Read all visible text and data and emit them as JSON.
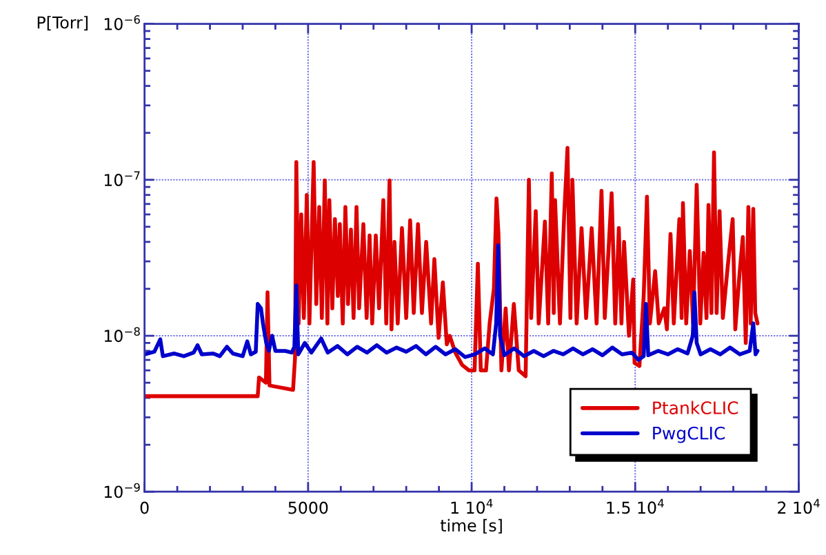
{
  "chart_data": {
    "type": "line",
    "xlabel": "time [s]",
    "ylabel": "P[Torr]",
    "log": "y",
    "grid": true,
    "legend": "bottom right",
    "line_style": "solid",
    "xlim": [
      0,
      20000
    ],
    "xticks": [
      0,
      5000,
      {
        "value": 10000,
        "label": "1 10$^{4}$"
      },
      {
        "value": 15000,
        "label": "1.5 10$^{4}$"
      },
      {
        "value": 20000,
        "label": "2 10$^{4}$"
      }
    ],
    "ylim": [
      1e-09,
      1e-06
    ],
    "yticks": [
      {
        "value": 1e-09,
        "label": "10$^{−9}$"
      },
      {
        "value": 1e-08,
        "label": "10$^{−8}$"
      },
      {
        "value": 1e-07,
        "label": "10$^{−7}$"
      },
      {
        "value": 1e-06,
        "label": "10$^{−6}$"
      }
    ],
    "series": [
      {
        "name": "PtankCLIC",
        "color": "#dd0000",
        "x": [
          0,
          3460,
          3500,
          3710,
          3760,
          3820,
          4540,
          4600,
          4640,
          4710,
          4790,
          4870,
          4960,
          5040,
          5170,
          5250,
          5340,
          5420,
          5510,
          5590,
          5650,
          5740,
          5820,
          5910,
          5970,
          6060,
          6140,
          6220,
          6310,
          6390,
          6480,
          6560,
          6690,
          6790,
          6880,
          6960,
          7070,
          7170,
          7300,
          7390,
          7490,
          7550,
          7640,
          7740,
          7870,
          8000,
          8120,
          8230,
          8360,
          8480,
          8610,
          8760,
          8860,
          8990,
          9120,
          9240,
          9330,
          9500,
          9710,
          9920,
          10090,
          10190,
          10280,
          10440,
          10550,
          10680,
          10760,
          10820,
          10910,
          11040,
          11140,
          11290,
          11440,
          11650,
          11750,
          11820,
          11960,
          12050,
          12240,
          12340,
          12450,
          12510,
          12550,
          12700,
          12830,
          12930,
          13020,
          13080,
          13210,
          13360,
          13500,
          13670,
          13820,
          13970,
          14070,
          14280,
          14390,
          14500,
          14580,
          14660,
          14810,
          14940,
          14980,
          15130,
          15260,
          15360,
          15450,
          15610,
          15720,
          15890,
          15970,
          16080,
          16180,
          16350,
          16420,
          16460,
          16560,
          16670,
          16770,
          16880,
          16990,
          17090,
          17180,
          17240,
          17330,
          17410,
          17490,
          17580,
          17680,
          17830,
          17980,
          18060,
          18190,
          18290,
          18380,
          18460,
          18530,
          18610,
          18670,
          18740
        ],
        "values": [
          4.1e-09,
          4.1e-09,
          5.4e-09,
          5e-09,
          1.9e-08,
          4.8e-09,
          4.5e-09,
          7.2e-09,
          1.3e-07,
          1.2e-08,
          6e-08,
          1.3e-08,
          8e-08,
          1.2e-08,
          1.3e-07,
          1.6e-08,
          6.7e-08,
          1.3e-08,
          9.9e-08,
          1.2e-08,
          7.4e-08,
          1.5e-08,
          5.6e-08,
          1.8e-08,
          5.2e-08,
          1.2e-08,
          6.7e-08,
          1.6e-08,
          4.8e-08,
          1.3e-08,
          6.7e-08,
          1.5e-08,
          5.2e-08,
          1.3e-08,
          4.4e-08,
          1.2e-08,
          4.4e-08,
          1.5e-08,
          7.4e-08,
          1.2e-08,
          9.9e-08,
          1.1e-08,
          4e-08,
          1.2e-08,
          4.9e-08,
          1.3e-08,
          5.5e-08,
          1.4e-08,
          5.2e-08,
          1.4e-08,
          4e-08,
          1.2e-08,
          3.1e-08,
          9.7e-09,
          2.2e-08,
          8.8e-09,
          1e-08,
          7.8e-09,
          6.5e-09,
          6e-09,
          6e-09,
          2.9e-08,
          6e-09,
          6e-09,
          1.2e-08,
          2e-08,
          7.6e-08,
          4.5e-08,
          6e-09,
          1.5e-08,
          6e-09,
          1.6e-08,
          6e-09,
          5.5e-09,
          1e-07,
          1.3e-08,
          6.3e-08,
          1.2e-08,
          5.4e-08,
          1.2e-08,
          1.1e-07,
          1.4e-08,
          7.4e-08,
          1.2e-08,
          6e-08,
          1.6e-07,
          1.3e-08,
          1e-07,
          1.2e-08,
          4.9e-08,
          1.3e-08,
          4.9e-08,
          1.2e-08,
          8.5e-08,
          1.3e-08,
          8.2e-08,
          1.2e-08,
          4.9e-08,
          1.2e-08,
          4e-08,
          1e-08,
          2.3e-08,
          6.7e-09,
          6.4e-09,
          1.8e-08,
          7.8e-08,
          1.2e-08,
          2.6e-08,
          1.2e-08,
          1.5e-08,
          1.1e-08,
          4.5e-08,
          1.2e-08,
          5.6e-08,
          1.3e-08,
          7.1e-08,
          1.2e-08,
          3.5e-08,
          1.2e-08,
          9.3e-08,
          1.2e-08,
          3.4e-08,
          1.3e-08,
          6.9e-08,
          1.4e-08,
          1.5e-07,
          1.4e-08,
          6.3e-08,
          1.3e-08,
          2.8e-08,
          5.6e-08,
          1.1e-08,
          2.5e-08,
          4.3e-08,
          9e-09,
          6.7e-08,
          1.2e-08,
          6.5e-08,
          1.4e-08,
          1.2e-08
        ]
      },
      {
        "name": "PwgCLIC",
        "color": "#0000cc",
        "x": [
          0,
          300,
          480,
          560,
          900,
          1200,
          1500,
          1620,
          1750,
          2100,
          2300,
          2520,
          2700,
          3000,
          3140,
          3250,
          3400,
          3460,
          3560,
          3620,
          3720,
          3800,
          3900,
          4000,
          4300,
          4500,
          4580,
          4640,
          4700,
          4900,
          5100,
          5400,
          5600,
          5900,
          6200,
          6500,
          6800,
          7100,
          7400,
          7700,
          8000,
          8300,
          8600,
          8900,
          9200,
          9500,
          9800,
          10100,
          10400,
          10650,
          10750,
          10810,
          10870,
          11000,
          11300,
          11600,
          11900,
          12200,
          12500,
          12800,
          13100,
          13400,
          13700,
          14000,
          14300,
          14600,
          14900,
          15100,
          15260,
          15330,
          15400,
          15700,
          16000,
          16300,
          16600,
          16760,
          16810,
          16880,
          17000,
          17300,
          17600,
          17900,
          18200,
          18500,
          18610,
          18680,
          18740
        ],
        "values": [
          7.6e-09,
          7.9e-09,
          9.5e-09,
          7.4e-09,
          7.7e-09,
          7.4e-09,
          7.8e-09,
          8.7e-09,
          7.6e-09,
          7.7e-09,
          7.4e-09,
          8.5e-09,
          7.7e-09,
          7.4e-09,
          9.2e-09,
          7.6e-09,
          7.9e-09,
          1.6e-08,
          1.5e-08,
          1.2e-08,
          9e-09,
          8e-09,
          1e-08,
          8e-09,
          8e-09,
          7.8e-09,
          8.5e-09,
          2.1e-08,
          7.6e-09,
          9e-09,
          7.8e-09,
          9.6e-09,
          7.8e-09,
          8.6e-09,
          7.6e-09,
          8.5e-09,
          7.8e-09,
          8.7e-09,
          7.8e-09,
          8.4e-09,
          7.9e-09,
          8.6e-09,
          7.6e-09,
          8.5e-09,
          7.6e-09,
          8.2e-09,
          7.3e-09,
          7.6e-09,
          8.3e-09,
          7.6e-09,
          1.2e-08,
          3.8e-08,
          1e-08,
          7.5e-09,
          8.3e-09,
          7.4e-09,
          8e-09,
          7.4e-09,
          8e-09,
          7.6e-09,
          8.3e-09,
          7.6e-09,
          8.2e-09,
          7.5e-09,
          8.4e-09,
          7.6e-09,
          7.8e-09,
          7e-09,
          7.4e-09,
          1.6e-08,
          7.5e-09,
          8e-09,
          7.6e-09,
          8.2e-09,
          7.7e-09,
          1e-08,
          1.9e-08,
          9e-09,
          7.6e-09,
          8.2e-09,
          7.6e-09,
          8.4e-09,
          7.6e-09,
          8e-09,
          1.2e-08,
          7.6e-09,
          8e-09
        ]
      }
    ]
  }
}
